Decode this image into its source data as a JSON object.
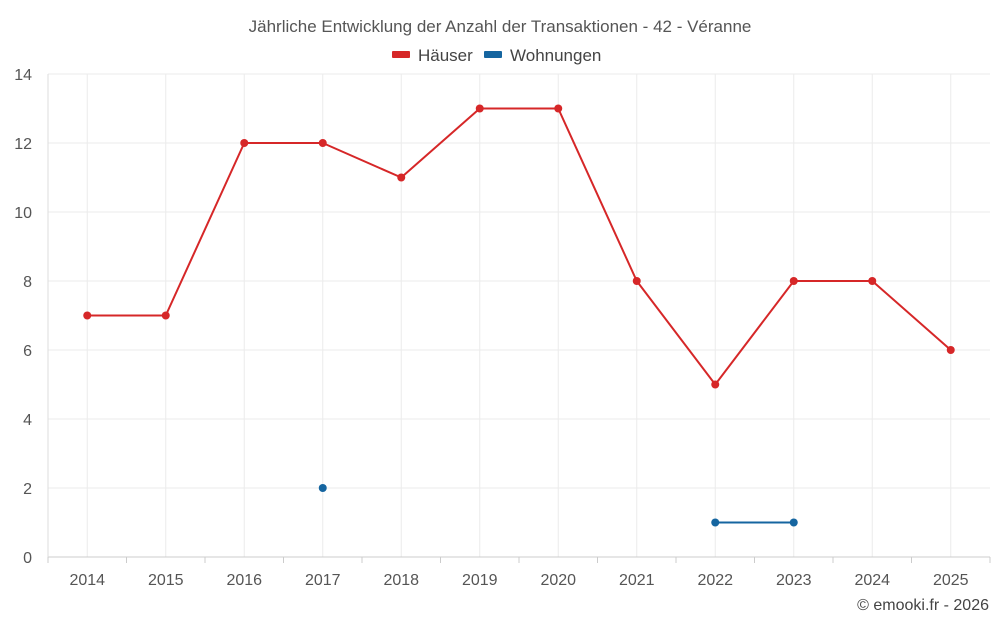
{
  "chart_data": {
    "type": "line",
    "title": "Jährliche Entwicklung der Anzahl der Transaktionen - 42 - Véranne",
    "categories": [
      "2014",
      "2015",
      "2016",
      "2017",
      "2018",
      "2019",
      "2020",
      "2021",
      "2022",
      "2023",
      "2024",
      "2025"
    ],
    "ylim": [
      0,
      14
    ],
    "yticks": [
      0,
      2,
      4,
      6,
      8,
      10,
      12,
      14
    ],
    "grid": true,
    "legend_position": "top-center",
    "series": [
      {
        "name": "Häuser",
        "color": "#d62728",
        "values": [
          7,
          7,
          12,
          12,
          11,
          13,
          13,
          8,
          5,
          8,
          8,
          6
        ]
      },
      {
        "name": "Wohnungen",
        "color": "#1565a0",
        "values": [
          null,
          null,
          null,
          2,
          null,
          null,
          null,
          null,
          1,
          1,
          null,
          null
        ]
      }
    ],
    "credit": "© emooki.fr - 2026"
  }
}
